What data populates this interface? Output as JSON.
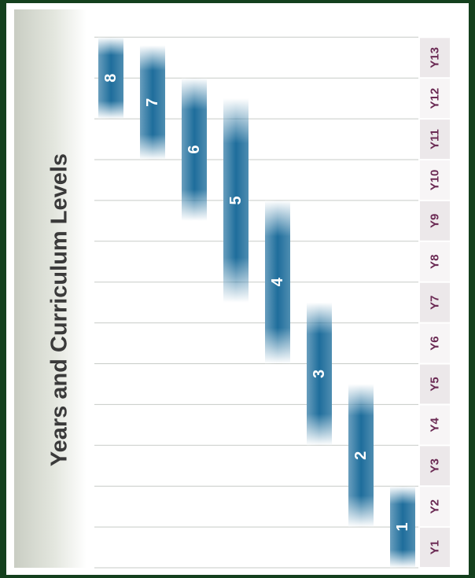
{
  "title": "Years and Curriculum Levels",
  "colors": {
    "background": "#14401d",
    "bar": "#1f6e9c",
    "year_label_text": "#6b2a54",
    "year_label_bg_dark": "#ece8ea",
    "year_label_bg_light": "#f7f5f6",
    "gridline": "#c7cbc7",
    "title_text": "#3a3a3a"
  },
  "chart_data": {
    "type": "bar",
    "title": "Years and Curriculum Levels",
    "orientation": "vertical-page (rotated 90° counter-clockwise)",
    "categories": [
      "Y1",
      "Y2",
      "Y3",
      "Y4",
      "Y5",
      "Y6",
      "Y7",
      "Y8",
      "Y9",
      "Y10",
      "Y11",
      "Y12",
      "Y13"
    ],
    "series": [
      {
        "level": "1",
        "start_year": 1.0,
        "end_year": 3.0
      },
      {
        "level": "2",
        "start_year": 2.0,
        "end_year": 5.5
      },
      {
        "level": "3",
        "start_year": 4.0,
        "end_year": 7.5
      },
      {
        "level": "4",
        "start_year": 6.0,
        "end_year": 10.0
      },
      {
        "level": "5",
        "start_year": 7.5,
        "end_year": 12.5
      },
      {
        "level": "6",
        "start_year": 9.5,
        "end_year": 13.0
      },
      {
        "level": "7",
        "start_year": 11.0,
        "end_year": 13.8
      },
      {
        "level": "8",
        "start_year": 12.0,
        "end_year": 14.0
      }
    ],
    "grid": true
  }
}
